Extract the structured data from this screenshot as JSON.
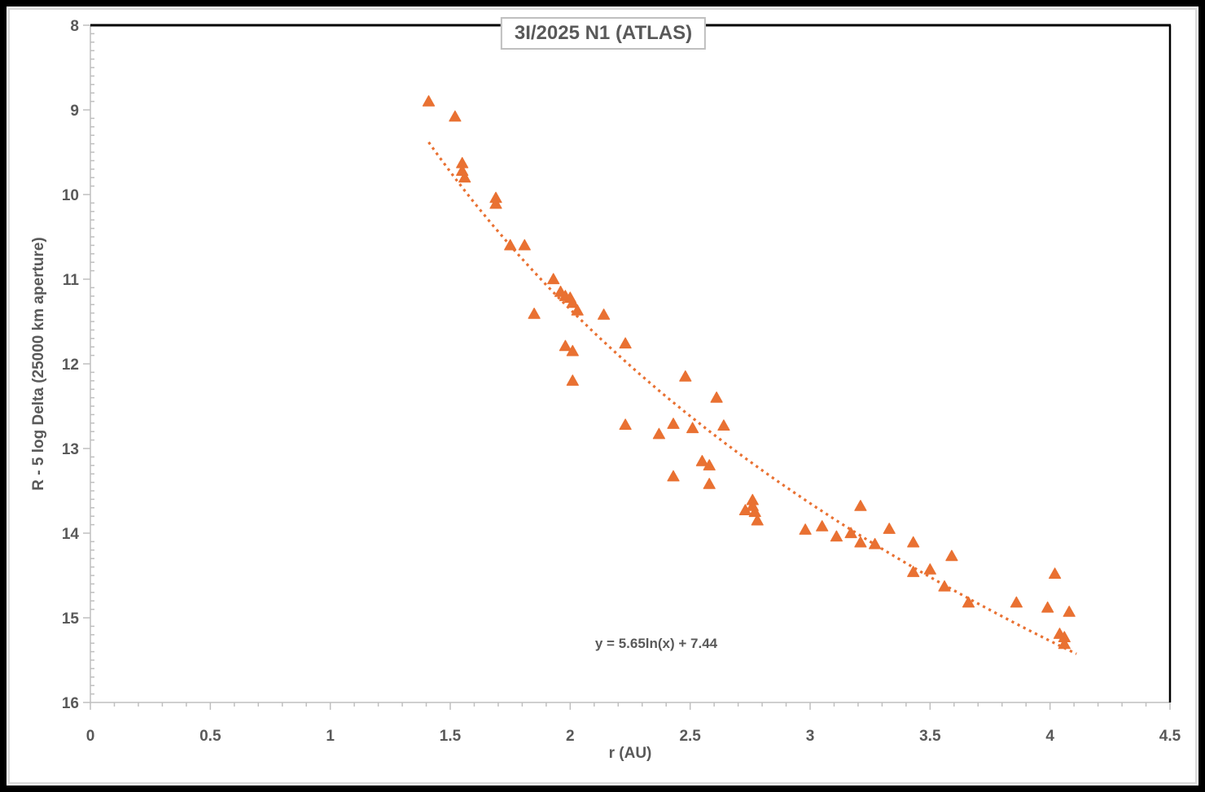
{
  "title": "3I/2025 N1 (ATLAS)",
  "colors": {
    "marker": "#E97132",
    "trendline": "#E97132",
    "axis_line": "#BFBFBF",
    "plot_border": "#000000",
    "outer_frame": "#000000",
    "chart_border": "#D9D9D9",
    "text": "#595959",
    "background": "#FFFFFF"
  },
  "chart_data": {
    "type": "scatter",
    "title": "3I/2025 N1 (ATLAS)",
    "xlabel": "r (AU)",
    "ylabel": "R - 5 log Delta (25000 km aperture)",
    "xlim": [
      0,
      4.5
    ],
    "ylim": [
      8,
      16
    ],
    "y_axis_inverted": true,
    "grid": false,
    "legend": "none",
    "x_ticks": {
      "values": [
        0,
        0.5,
        1,
        1.5,
        2,
        2.5,
        3,
        3.5,
        4,
        4.5
      ],
      "labels": [
        "0",
        "0.5",
        "1",
        "1.5",
        "2",
        "2.5",
        "3",
        "3.5",
        "4",
        "4.5"
      ],
      "minor_unit": 0.1
    },
    "y_ticks": {
      "values": [
        8,
        9,
        10,
        11,
        12,
        13,
        14,
        15,
        16
      ],
      "labels": [
        "8",
        "9",
        "10",
        "11",
        "12",
        "13",
        "14",
        "15",
        "16"
      ],
      "minor_unit": 0.1
    },
    "marker": {
      "shape": "triangle-up",
      "color": "#E97132",
      "size": 14
    },
    "points": [
      [
        1.41,
        8.9
      ],
      [
        1.52,
        9.08
      ],
      [
        1.55,
        9.63
      ],
      [
        1.55,
        9.72
      ],
      [
        1.56,
        9.8
      ],
      [
        1.69,
        10.04
      ],
      [
        1.69,
        10.11
      ],
      [
        1.75,
        10.6
      ],
      [
        1.81,
        10.6
      ],
      [
        1.85,
        11.41
      ],
      [
        1.93,
        11.0
      ],
      [
        1.96,
        11.15
      ],
      [
        1.98,
        11.2
      ],
      [
        1.98,
        11.79
      ],
      [
        2.0,
        11.22
      ],
      [
        2.01,
        11.28
      ],
      [
        2.01,
        11.85
      ],
      [
        2.01,
        12.2
      ],
      [
        2.03,
        11.37
      ],
      [
        2.14,
        11.42
      ],
      [
        2.23,
        11.76
      ],
      [
        2.23,
        12.72
      ],
      [
        2.37,
        12.83
      ],
      [
        2.43,
        12.71
      ],
      [
        2.43,
        13.33
      ],
      [
        2.48,
        12.15
      ],
      [
        2.51,
        12.76
      ],
      [
        2.55,
        13.15
      ],
      [
        2.58,
        13.2
      ],
      [
        2.58,
        13.42
      ],
      [
        2.61,
        12.4
      ],
      [
        2.64,
        12.73
      ],
      [
        2.73,
        13.73
      ],
      [
        2.76,
        13.61
      ],
      [
        2.76,
        13.68
      ],
      [
        2.77,
        13.75
      ],
      [
        2.78,
        13.85
      ],
      [
        2.98,
        13.96
      ],
      [
        3.05,
        13.92
      ],
      [
        3.11,
        14.04
      ],
      [
        3.17,
        14.0
      ],
      [
        3.21,
        13.68
      ],
      [
        3.21,
        14.11
      ],
      [
        3.27,
        14.13
      ],
      [
        3.33,
        13.95
      ],
      [
        3.43,
        14.11
      ],
      [
        3.43,
        14.46
      ],
      [
        3.5,
        14.43
      ],
      [
        3.56,
        14.63
      ],
      [
        3.59,
        14.27
      ],
      [
        3.66,
        14.82
      ],
      [
        3.86,
        14.82
      ],
      [
        3.99,
        14.88
      ],
      [
        4.02,
        14.48
      ],
      [
        4.04,
        15.19
      ],
      [
        4.06,
        15.23
      ],
      [
        4.06,
        15.31
      ],
      [
        4.08,
        14.93
      ]
    ],
    "trendline": {
      "type": "logarithmic",
      "equation": "y = 5.65ln(x) + 7.44",
      "coef_a": 5.65,
      "coef_b": 7.44,
      "x_range": [
        1.41,
        4.11
      ],
      "style": "dotted",
      "color": "#E97132"
    }
  }
}
